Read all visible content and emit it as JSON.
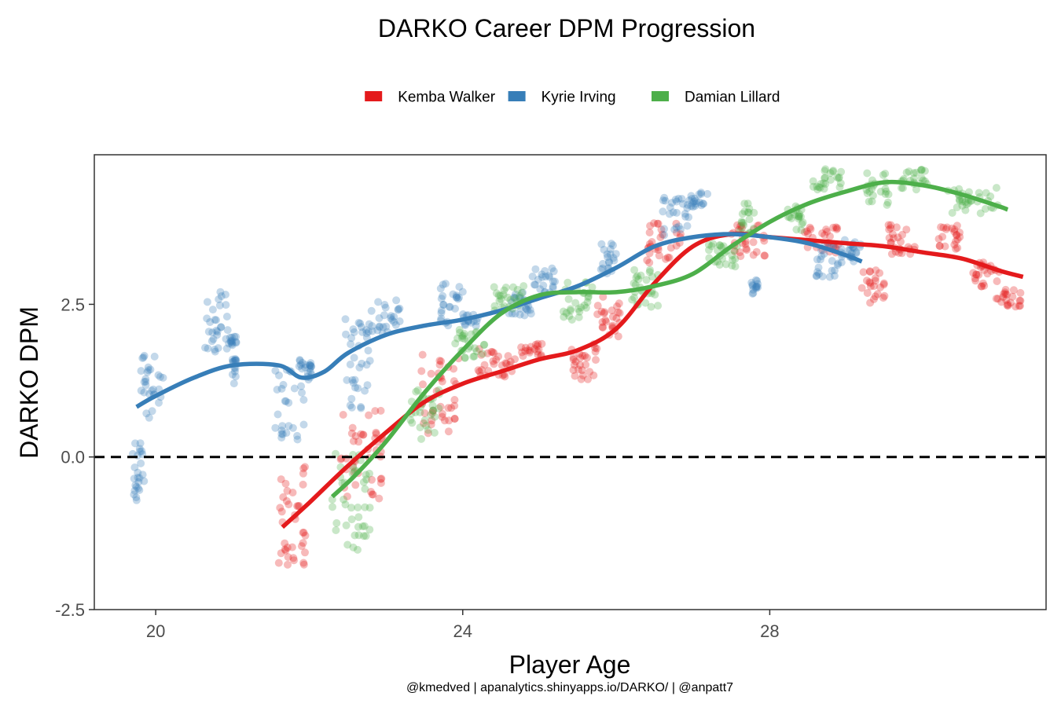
{
  "chart_data": {
    "type": "scatter",
    "title": "DARKO Career DPM Progression",
    "xlabel": "Player Age",
    "ylabel": "DARKO DPM",
    "caption": "@kmedved | apanalytics.shinyapps.io/DARKO/ | @anpatt7",
    "xlim": [
      19.2,
      31.6
    ],
    "ylim": [
      -2.5,
      4.95
    ],
    "x_ticks": [
      {
        "value": 20,
        "label": "20"
      },
      {
        "value": 24,
        "label": "24"
      },
      {
        "value": 28,
        "label": "28"
      }
    ],
    "y_ticks": [
      {
        "value": -2.5,
        "label": "-2.5"
      },
      {
        "value": 0.0,
        "label": "0.0"
      },
      {
        "value": 2.5,
        "label": "2.5"
      }
    ],
    "reference_line": {
      "y": 0,
      "style": "dashed"
    },
    "legend": {
      "position": "top"
    },
    "series": [
      {
        "name": "Kemba Walker",
        "color": "#E41A1C",
        "trend": [
          [
            21.65,
            -1.15
          ],
          [
            22.0,
            -0.75
          ],
          [
            22.5,
            -0.15
          ],
          [
            23.0,
            0.4
          ],
          [
            23.5,
            0.9
          ],
          [
            24.0,
            1.2
          ],
          [
            24.5,
            1.4
          ],
          [
            25.0,
            1.6
          ],
          [
            25.5,
            1.75
          ],
          [
            26.0,
            2.1
          ],
          [
            26.5,
            2.85
          ],
          [
            27.0,
            3.45
          ],
          [
            27.5,
            3.65
          ],
          [
            28.0,
            3.6
          ],
          [
            28.5,
            3.55
          ],
          [
            29.0,
            3.5
          ],
          [
            29.5,
            3.45
          ],
          [
            30.0,
            3.35
          ],
          [
            30.5,
            3.25
          ],
          [
            31.0,
            3.05
          ],
          [
            31.3,
            2.95
          ]
        ],
        "clusters": [
          {
            "x": [
              21.6,
              21.95
            ],
            "y": [
              -2.2,
              0.3
            ]
          },
          {
            "x": [
              22.4,
              23.0
            ],
            "y": [
              -1.0,
              1.1
            ]
          },
          {
            "x": [
              23.45,
              23.95
            ],
            "y": [
              0.1,
              2.0
            ]
          },
          {
            "x": [
              24.2,
              24.7
            ],
            "y": [
              1.2,
              1.9
            ]
          },
          {
            "x": [
              24.75,
              25.05
            ],
            "y": [
              1.6,
              1.9
            ]
          },
          {
            "x": [
              25.4,
              25.75
            ],
            "y": [
              1.1,
              2.0
            ]
          },
          {
            "x": [
              25.75,
              26.05
            ],
            "y": [
              1.8,
              2.8
            ]
          },
          {
            "x": [
              26.4,
              26.85
            ],
            "y": [
              3.0,
              4.0
            ]
          },
          {
            "x": [
              27.5,
              27.95
            ],
            "y": [
              3.0,
              4.0
            ]
          },
          {
            "x": [
              28.45,
              28.9
            ],
            "y": [
              3.2,
              3.9
            ]
          },
          {
            "x": [
              29.2,
              29.5
            ],
            "y": [
              2.4,
              3.2
            ]
          },
          {
            "x": [
              29.5,
              29.9
            ],
            "y": [
              3.2,
              4.0
            ]
          },
          {
            "x": [
              30.2,
              30.5
            ],
            "y": [
              3.3,
              3.9
            ]
          },
          {
            "x": [
              30.6,
              31.0
            ],
            "y": [
              2.7,
              3.3
            ]
          },
          {
            "x": [
              30.95,
              31.3
            ],
            "y": [
              2.4,
              2.8
            ]
          }
        ]
      },
      {
        "name": "Kyrie Irving",
        "color": "#377EB8",
        "trend": [
          [
            19.75,
            0.82
          ],
          [
            20.0,
            1.0
          ],
          [
            20.5,
            1.3
          ],
          [
            21.0,
            1.5
          ],
          [
            21.6,
            1.5
          ],
          [
            21.9,
            1.3
          ],
          [
            22.2,
            1.4
          ],
          [
            22.5,
            1.7
          ],
          [
            23.0,
            2.0
          ],
          [
            23.5,
            2.15
          ],
          [
            24.0,
            2.25
          ],
          [
            24.5,
            2.4
          ],
          [
            25.0,
            2.6
          ],
          [
            25.5,
            2.8
          ],
          [
            26.0,
            3.1
          ],
          [
            26.5,
            3.45
          ],
          [
            27.0,
            3.6
          ],
          [
            27.5,
            3.65
          ],
          [
            28.0,
            3.6
          ],
          [
            28.5,
            3.5
          ],
          [
            29.0,
            3.3
          ],
          [
            29.2,
            3.2
          ]
        ],
        "clusters": [
          {
            "x": [
              19.7,
              19.85
            ],
            "y": [
              -1.0,
              0.5
            ]
          },
          {
            "x": [
              19.8,
              20.1
            ],
            "y": [
              0.4,
              1.9
            ]
          },
          {
            "x": [
              20.6,
              20.95
            ],
            "y": [
              1.5,
              3.0
            ]
          },
          {
            "x": [
              20.95,
              21.05
            ],
            "y": [
              1.8,
              2.0
            ]
          },
          {
            "x": [
              21.0,
              21.05
            ],
            "y": [
              1.1,
              1.7
            ]
          },
          {
            "x": [
              21.55,
              21.95
            ],
            "y": [
              0.0,
              1.9
            ]
          },
          {
            "x": [
              21.95,
              22.05
            ],
            "y": [
              1.2,
              1.6
            ]
          },
          {
            "x": [
              22.45,
              22.8
            ],
            "y": [
              0.4,
              2.6
            ]
          },
          {
            "x": [
              22.8,
              23.2
            ],
            "y": [
              1.9,
              2.7
            ]
          },
          {
            "x": [
              23.7,
              24.0
            ],
            "y": [
              2.0,
              3.0
            ]
          },
          {
            "x": [
              24.0,
              24.2
            ],
            "y": [
              2.1,
              2.4
            ]
          },
          {
            "x": [
              24.6,
              24.9
            ],
            "y": [
              2.2,
              2.8
            ]
          },
          {
            "x": [
              24.9,
              25.2
            ],
            "y": [
              2.6,
              3.2
            ]
          },
          {
            "x": [
              25.8,
              26.0
            ],
            "y": [
              2.9,
              3.6
            ]
          },
          {
            "x": [
              26.6,
              26.95
            ],
            "y": [
              3.5,
              4.4
            ]
          },
          {
            "x": [
              26.95,
              27.2
            ],
            "y": [
              4.0,
              4.4
            ]
          },
          {
            "x": [
              27.75,
              27.85
            ],
            "y": [
              2.6,
              3.0
            ]
          },
          {
            "x": [
              28.6,
              28.95
            ],
            "y": [
              2.8,
              3.6
            ]
          },
          {
            "x": [
              28.95,
              29.2
            ],
            "y": [
              3.1,
              3.7
            ]
          }
        ]
      },
      {
        "name": "Damian Lillard",
        "color": "#4DAF4A",
        "trend": [
          [
            22.3,
            -0.65
          ],
          [
            22.6,
            -0.3
          ],
          [
            23.0,
            0.25
          ],
          [
            23.5,
            1.05
          ],
          [
            24.0,
            1.75
          ],
          [
            24.5,
            2.35
          ],
          [
            25.0,
            2.65
          ],
          [
            25.5,
            2.7
          ],
          [
            26.0,
            2.7
          ],
          [
            26.5,
            2.8
          ],
          [
            27.0,
            3.0
          ],
          [
            27.5,
            3.45
          ],
          [
            28.0,
            3.85
          ],
          [
            28.5,
            4.15
          ],
          [
            29.0,
            4.35
          ],
          [
            29.5,
            4.5
          ],
          [
            30.0,
            4.45
          ],
          [
            30.5,
            4.3
          ],
          [
            31.0,
            4.1
          ],
          [
            31.1,
            4.05
          ]
        ],
        "clusters": [
          {
            "x": [
              22.3,
              22.8
            ],
            "y": [
              -1.9,
              0.4
            ]
          },
          {
            "x": [
              23.3,
              23.7
            ],
            "y": [
              0.1,
              1.3
            ]
          },
          {
            "x": [
              23.9,
              24.3
            ],
            "y": [
              1.5,
              2.2
            ]
          },
          {
            "x": [
              24.4,
              24.8
            ],
            "y": [
              2.3,
              2.9
            ]
          },
          {
            "x": [
              25.3,
              25.7
            ],
            "y": [
              2.1,
              3.0
            ]
          },
          {
            "x": [
              26.2,
              26.6
            ],
            "y": [
              2.3,
              3.2
            ]
          },
          {
            "x": [
              27.2,
              27.6
            ],
            "y": [
              3.0,
              3.6
            ]
          },
          {
            "x": [
              27.6,
              27.8
            ],
            "y": [
              3.5,
              4.3
            ]
          },
          {
            "x": [
              28.2,
              28.45
            ],
            "y": [
              3.6,
              4.2
            ]
          },
          {
            "x": [
              28.55,
              28.95
            ],
            "y": [
              4.3,
              4.8
            ]
          },
          {
            "x": [
              29.25,
              29.55
            ],
            "y": [
              4.0,
              4.8
            ]
          },
          {
            "x": [
              29.7,
              30.05
            ],
            "y": [
              4.3,
              4.8
            ]
          },
          {
            "x": [
              30.3,
              31.0
            ],
            "y": [
              3.9,
              4.5
            ]
          }
        ]
      }
    ]
  }
}
